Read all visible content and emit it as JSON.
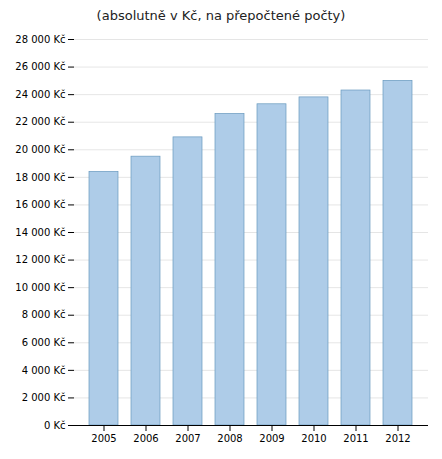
{
  "chart_data": {
    "type": "bar",
    "title": "(absolutně v Kč, na přepočtené počty)",
    "categories": [
      "2005",
      "2006",
      "2007",
      "2008",
      "2009",
      "2010",
      "2011",
      "2012"
    ],
    "values": [
      18400,
      19500,
      20900,
      22600,
      23300,
      23800,
      24300,
      25000
    ],
    "color": "#aecce8",
    "ylim": [
      0,
      28000
    ],
    "yticks": [
      {
        "value": 0,
        "label": "0 Kč"
      },
      {
        "value": 2000,
        "label": "2 000 Kč"
      },
      {
        "value": 4000,
        "label": "4 000 Kč"
      },
      {
        "value": 6000,
        "label": "6 000 Kč"
      },
      {
        "value": 8000,
        "label": "8 000 Kč"
      },
      {
        "value": 10000,
        "label": "10 000 Kč"
      },
      {
        "value": 12000,
        "label": "12 000 Kč"
      },
      {
        "value": 14000,
        "label": "14 000 Kč"
      },
      {
        "value": 16000,
        "label": "16 000 Kč"
      },
      {
        "value": 18000,
        "label": "18 000 Kč"
      },
      {
        "value": 20000,
        "label": "20 000 Kč"
      },
      {
        "value": 22000,
        "label": "22 000 Kč"
      },
      {
        "value": 24000,
        "label": "24 000 Kč"
      },
      {
        "value": 26000,
        "label": "26 000 Kč"
      },
      {
        "value": 28000,
        "label": "28 000 Kč"
      }
    ],
    "grid": true
  }
}
